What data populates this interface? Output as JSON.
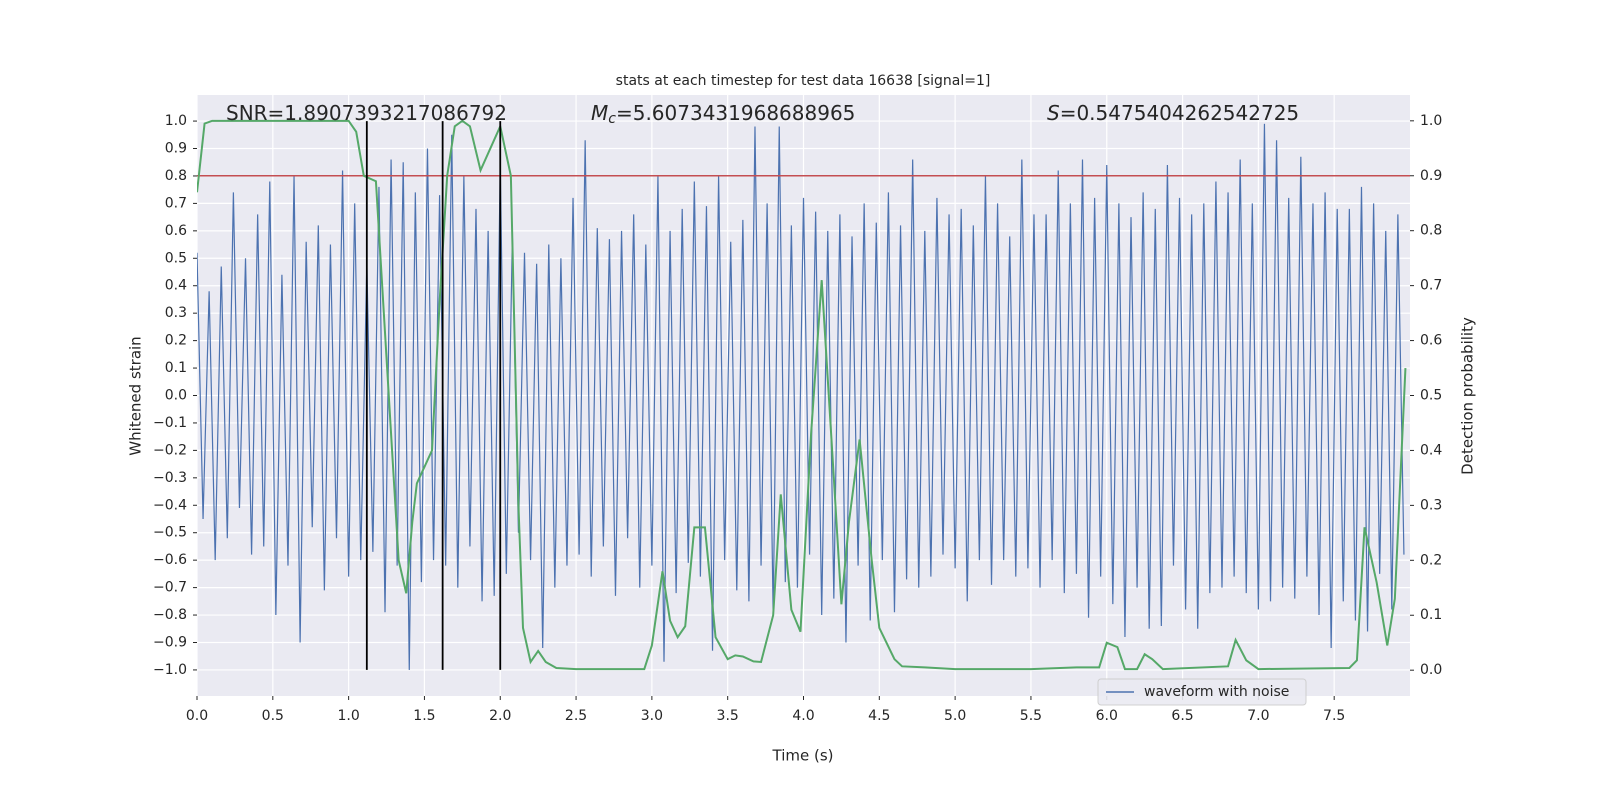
{
  "chart_data": {
    "type": "line",
    "title": "stats at each timestep for test data 16638 [signal=1]",
    "xlabel": "Time (s)",
    "ylabel": "Whitened strain",
    "y2label": "Detection probability",
    "annotations": [
      {
        "text": "SNR=1.8907393217086792"
      },
      {
        "symbol": "M",
        "subscript": "c",
        "text": "=5.6073431968688965"
      },
      {
        "symbol": "S",
        "text": "=0.5475404262542725"
      }
    ],
    "xlim": [
      0,
      8.0
    ],
    "ylim": [
      -1.095,
      1.095
    ],
    "y2lim": [
      -0.047,
      1.047
    ],
    "xticks": [
      {
        "value": 0,
        "label": "0.0"
      },
      {
        "value": 0.5,
        "label": "0.5"
      },
      {
        "value": 1,
        "label": "1.0"
      },
      {
        "value": 1.5,
        "label": "1.5"
      },
      {
        "value": 2,
        "label": "2.0"
      },
      {
        "value": 2.5,
        "label": "2.5"
      },
      {
        "value": 3,
        "label": "3.0"
      },
      {
        "value": 3.5,
        "label": "3.5"
      },
      {
        "value": 4,
        "label": "4.0"
      },
      {
        "value": 4.5,
        "label": "4.5"
      },
      {
        "value": 5,
        "label": "5.0"
      },
      {
        "value": 5.5,
        "label": "5.5"
      },
      {
        "value": 6,
        "label": "6.0"
      },
      {
        "value": 6.5,
        "label": "6.5"
      },
      {
        "value": 7,
        "label": "7.0"
      },
      {
        "value": 7.5,
        "label": "7.5"
      }
    ],
    "yticks": [
      {
        "value": -1,
        "label": "−1.0"
      },
      {
        "value": -0.9,
        "label": "−0.9"
      },
      {
        "value": -0.8,
        "label": "−0.8"
      },
      {
        "value": -0.7,
        "label": "−0.7"
      },
      {
        "value": -0.6,
        "label": "−0.6"
      },
      {
        "value": -0.5,
        "label": "−0.5"
      },
      {
        "value": -0.4,
        "label": "−0.4"
      },
      {
        "value": -0.3,
        "label": "−0.3"
      },
      {
        "value": -0.2,
        "label": "−0.2"
      },
      {
        "value": -0.1,
        "label": "−0.1"
      },
      {
        "value": 0,
        "label": "0.0"
      },
      {
        "value": 0.1,
        "label": "0.1"
      },
      {
        "value": 0.2,
        "label": "0.2"
      },
      {
        "value": 0.3,
        "label": "0.3"
      },
      {
        "value": 0.4,
        "label": "0.4"
      },
      {
        "value": 0.5,
        "label": "0.5"
      },
      {
        "value": 0.6,
        "label": "0.6"
      },
      {
        "value": 0.7,
        "label": "0.7"
      },
      {
        "value": 0.8,
        "label": "0.8"
      },
      {
        "value": 0.9,
        "label": "0.9"
      },
      {
        "value": 1,
        "label": "1.0"
      }
    ],
    "y2ticks": [
      {
        "value": 0,
        "label": "0.0"
      },
      {
        "value": 0.1,
        "label": "0.1"
      },
      {
        "value": 0.2,
        "label": "0.2"
      },
      {
        "value": 0.3,
        "label": "0.3"
      },
      {
        "value": 0.4,
        "label": "0.4"
      },
      {
        "value": 0.5,
        "label": "0.5"
      },
      {
        "value": 0.6,
        "label": "0.6"
      },
      {
        "value": 0.7,
        "label": "0.7"
      },
      {
        "value": 0.8,
        "label": "0.8"
      },
      {
        "value": 0.9,
        "label": "0.9"
      },
      {
        "value": 1,
        "label": "1.0"
      }
    ],
    "grid": true,
    "legend": "lower right",
    "hline": {
      "value": 0.9,
      "axis": "y2",
      "color": "#c44e52"
    },
    "vlines": [
      1.12,
      1.62,
      2.0
    ],
    "vline_range": [
      -1,
      1
    ],
    "vline_color": "#000000",
    "series": [
      {
        "name": "waveform with noise",
        "color": "#4c72b0",
        "legend": true,
        "x": [
          0,
          0.04,
          0.08,
          0.12,
          0.16,
          0.2,
          0.24,
          0.28,
          0.32,
          0.36,
          0.4,
          0.44,
          0.48,
          0.52,
          0.56,
          0.6,
          0.64,
          0.68,
          0.72,
          0.76,
          0.8,
          0.84,
          0.88,
          0.92,
          0.96,
          1.0,
          1.04,
          1.08,
          1.12,
          1.16,
          1.2,
          1.24,
          1.28,
          1.32,
          1.36,
          1.4,
          1.44,
          1.48,
          1.52,
          1.56,
          1.6,
          1.64,
          1.68,
          1.72,
          1.76,
          1.8,
          1.84,
          1.88,
          1.92,
          1.96,
          2.0,
          2.04,
          2.08,
          2.12,
          2.16,
          2.2,
          2.24,
          2.28,
          2.32,
          2.36,
          2.4,
          2.44,
          2.48,
          2.52,
          2.56,
          2.6,
          2.64,
          2.68,
          2.72,
          2.76,
          2.8,
          2.84,
          2.88,
          2.92,
          2.96,
          3.0,
          3.04,
          3.08,
          3.12,
          3.16,
          3.2,
          3.24,
          3.28,
          3.32,
          3.36,
          3.4,
          3.44,
          3.48,
          3.52,
          3.56,
          3.6,
          3.64,
          3.68,
          3.72,
          3.76,
          3.8,
          3.84,
          3.88,
          3.92,
          3.96,
          4.0,
          4.04,
          4.08,
          4.12,
          4.16,
          4.2,
          4.24,
          4.28,
          4.32,
          4.36,
          4.4,
          4.44,
          4.48,
          4.52,
          4.56,
          4.6,
          4.64,
          4.68,
          4.72,
          4.76,
          4.8,
          4.84,
          4.88,
          4.92,
          4.96,
          5.0,
          5.04,
          5.08,
          5.12,
          5.16,
          5.2,
          5.24,
          5.28,
          5.32,
          5.36,
          5.4,
          5.44,
          5.48,
          5.52,
          5.56,
          5.6,
          5.64,
          5.68,
          5.72,
          5.76,
          5.8,
          5.84,
          5.88,
          5.92,
          5.96,
          6.0,
          6.04,
          6.08,
          6.12,
          6.16,
          6.2,
          6.24,
          6.28,
          6.32,
          6.36,
          6.4,
          6.44,
          6.48,
          6.52,
          6.56,
          6.6,
          6.64,
          6.68,
          6.72,
          6.76,
          6.8,
          6.84,
          6.88,
          6.92,
          6.96,
          7.0,
          7.04,
          7.08,
          7.12,
          7.16,
          7.2,
          7.24,
          7.28,
          7.32,
          7.36,
          7.4,
          7.44,
          7.48,
          7.52,
          7.56,
          7.6,
          7.64,
          7.68,
          7.72,
          7.76,
          7.8,
          7.84,
          7.88,
          7.92,
          7.96
        ],
        "values": [
          0.52,
          -0.45,
          0.38,
          -0.6,
          0.47,
          -0.52,
          0.74,
          -0.41,
          0.5,
          -0.58,
          0.66,
          -0.55,
          0.78,
          -0.8,
          0.44,
          -0.62,
          0.8,
          -0.9,
          0.56,
          -0.48,
          0.62,
          -0.71,
          0.55,
          -0.52,
          0.82,
          -0.66,
          0.7,
          -0.6,
          0.48,
          -0.57,
          0.76,
          -0.79,
          0.86,
          -0.62,
          0.85,
          -1.0,
          0.74,
          -0.68,
          0.9,
          -0.6,
          0.73,
          -0.62,
          0.95,
          -0.7,
          0.8,
          -0.55,
          0.68,
          -0.75,
          0.6,
          -0.73,
          0.84,
          -0.65,
          0.58,
          -0.5,
          0.52,
          -0.6,
          0.48,
          -0.92,
          0.55,
          -0.7,
          0.5,
          -0.62,
          0.72,
          -0.58,
          0.93,
          -0.66,
          0.61,
          -0.55,
          0.57,
          -0.73,
          0.6,
          -0.52,
          0.66,
          -0.7,
          0.55,
          -0.62,
          0.8,
          -0.97,
          0.6,
          -0.72,
          0.68,
          -0.61,
          0.78,
          -0.66,
          0.69,
          -0.93,
          0.8,
          -0.6,
          0.56,
          -0.71,
          0.64,
          -0.75,
          0.98,
          -0.62,
          0.7,
          -0.8,
          0.98,
          -0.68,
          0.62,
          -0.7,
          0.72,
          -0.58,
          0.67,
          -0.8,
          0.6,
          -0.74,
          0.66,
          -0.9,
          0.58,
          -0.62,
          0.7,
          -0.82,
          0.63,
          -0.6,
          0.74,
          -0.79,
          0.62,
          -0.67,
          0.86,
          -0.7,
          0.6,
          -0.66,
          0.72,
          -0.58,
          0.66,
          -0.63,
          0.68,
          -0.75,
          0.62,
          -0.6,
          0.8,
          -0.69,
          0.7,
          -0.6,
          0.58,
          -0.66,
          0.86,
          -0.63,
          0.66,
          -0.7,
          0.66,
          -0.6,
          0.82,
          -0.72,
          0.7,
          -0.65,
          0.86,
          -0.81,
          0.72,
          -0.66,
          0.84,
          -0.76,
          0.7,
          -0.88,
          0.65,
          -0.7,
          0.74,
          -0.85,
          0.68,
          -0.84,
          0.84,
          -0.62,
          0.72,
          -0.78,
          0.66,
          -0.85,
          0.7,
          -0.72,
          0.78,
          -0.7,
          0.74,
          -0.66,
          0.86,
          -0.72,
          0.7,
          -0.78,
          0.99,
          -0.75,
          0.93,
          -0.7,
          0.72,
          -0.74,
          0.87,
          -0.66,
          0.7,
          -0.8,
          0.74,
          -0.92,
          0.68,
          -0.75,
          0.68,
          -0.82,
          0.76,
          -0.86,
          0.7,
          -0.65,
          0.6,
          -0.78,
          0.66,
          -0.58
        ]
      },
      {
        "color": "#55a868",
        "axis": "y2",
        "legend": false,
        "x": [
          0,
          0.05,
          0.1,
          0.5,
          1.0,
          1.05,
          1.1,
          1.18,
          1.33,
          1.38,
          1.42,
          1.45,
          1.5,
          1.55,
          1.6,
          1.65,
          1.7,
          1.75,
          1.8,
          1.87,
          2.0,
          2.07,
          2.12,
          2.15,
          2.2,
          2.25,
          2.3,
          2.37,
          2.5,
          2.95,
          3.0,
          3.07,
          3.12,
          3.17,
          3.22,
          3.28,
          3.35,
          3.42,
          3.5,
          3.55,
          3.6,
          3.67,
          3.72,
          3.8,
          3.85,
          3.92,
          3.98,
          4.05,
          4.12,
          4.2,
          4.25,
          4.3,
          4.37,
          4.45,
          4.5,
          4.6,
          4.65,
          4.8,
          5.0,
          5.5,
          5.8,
          5.95,
          6.0,
          6.07,
          6.12,
          6.2,
          6.25,
          6.3,
          6.37,
          6.8,
          6.85,
          6.92,
          7.0,
          7.6,
          7.65,
          7.7,
          7.78,
          7.85,
          7.9,
          7.97
        ],
        "values": [
          0.87,
          0.995,
          1.0,
          1.0,
          1.0,
          0.98,
          0.9,
          0.89,
          0.2,
          0.14,
          0.27,
          0.34,
          0.37,
          0.4,
          0.67,
          0.9,
          0.99,
          1.0,
          0.99,
          0.91,
          0.99,
          0.9,
          0.3,
          0.077,
          0.015,
          0.035,
          0.015,
          0.004,
          0.002,
          0.002,
          0.045,
          0.18,
          0.09,
          0.06,
          0.08,
          0.26,
          0.26,
          0.06,
          0.02,
          0.027,
          0.025,
          0.016,
          0.015,
          0.1,
          0.32,
          0.11,
          0.07,
          0.43,
          0.71,
          0.35,
          0.12,
          0.27,
          0.42,
          0.2,
          0.077,
          0.02,
          0.007,
          0.005,
          0.002,
          0.002,
          0.005,
          0.005,
          0.05,
          0.042,
          0.002,
          0.002,
          0.029,
          0.02,
          0.002,
          0.007,
          0.055,
          0.018,
          0.002,
          0.004,
          0.018,
          0.26,
          0.16,
          0.045,
          0.13,
          0.55
        ]
      }
    ]
  }
}
